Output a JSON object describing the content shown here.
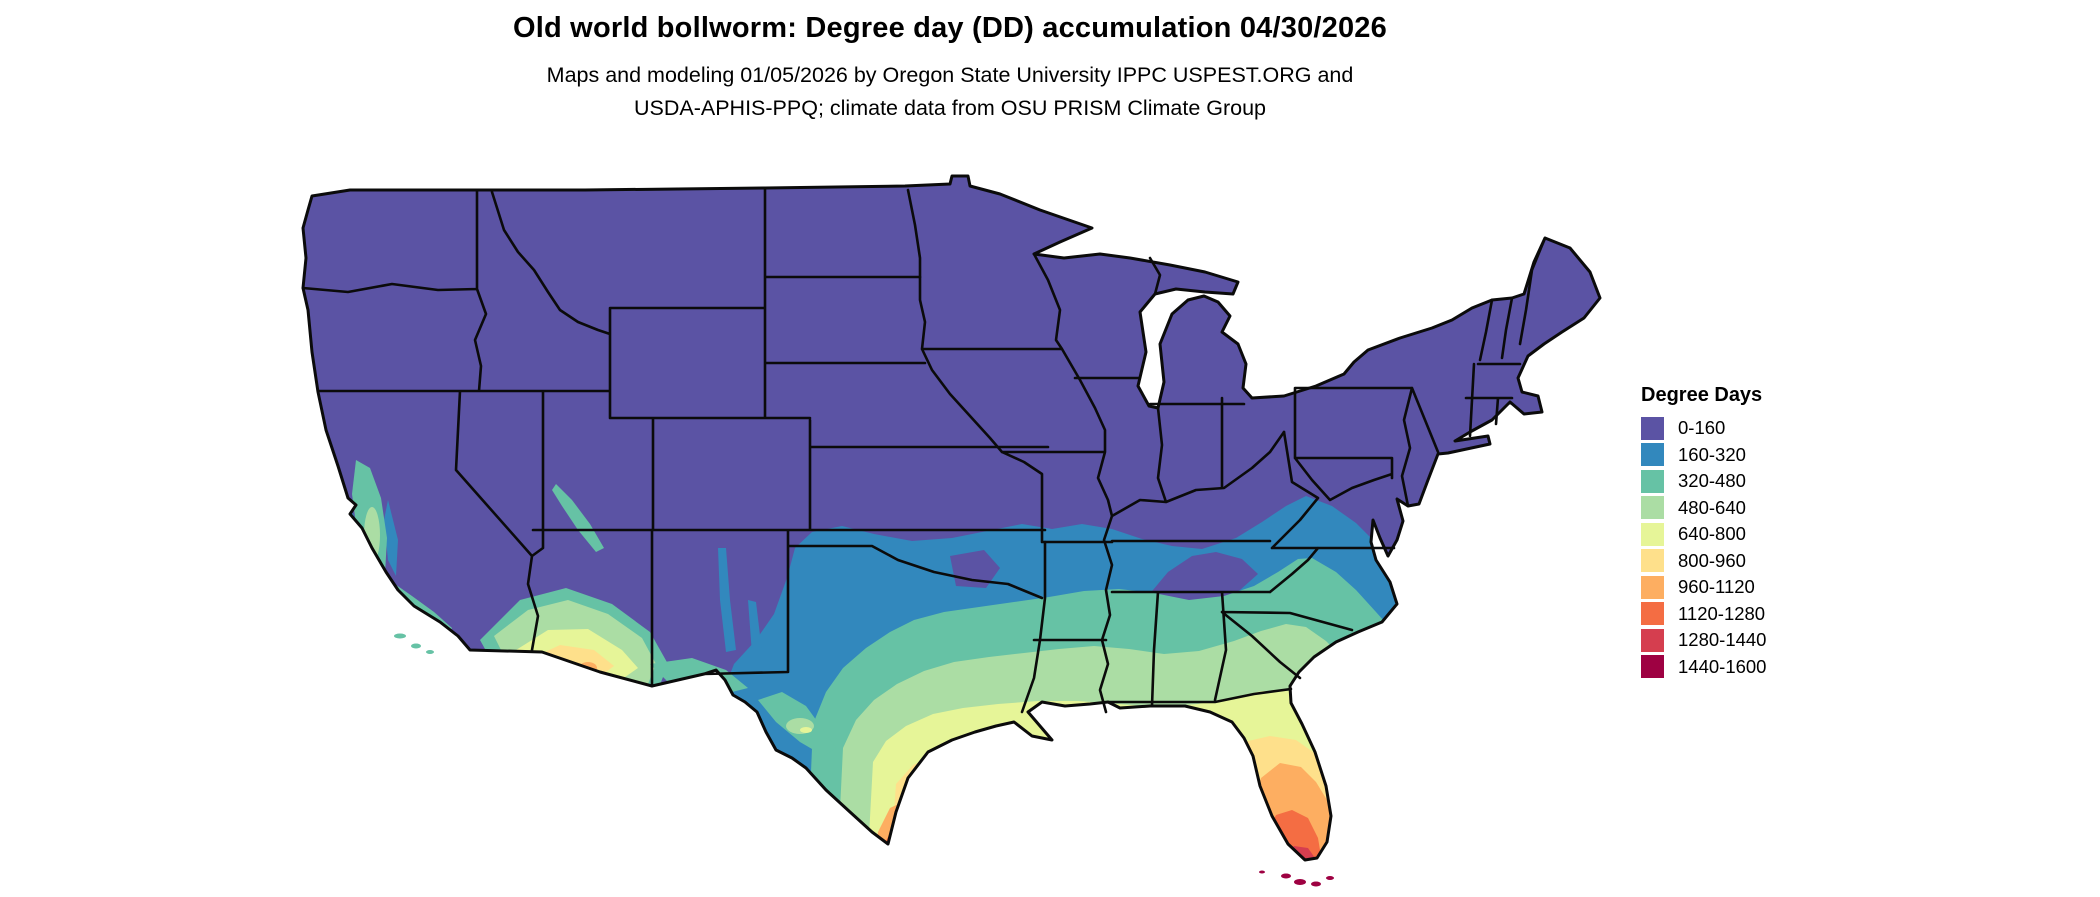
{
  "header": {
    "title": "Old world bollworm: Degree day (DD) accumulation 04/30/2026",
    "subtitle_line1": "Maps and modeling 01/05/2026 by Oregon State University IPPC USPEST.ORG and",
    "subtitle_line2": "USDA-APHIS-PPQ; climate data from OSU PRISM Climate Group"
  },
  "legend": {
    "title": "Degree Days",
    "entries": [
      {
        "label": "0-160",
        "color": "#5B53A4"
      },
      {
        "label": "160-320",
        "color": "#3288BD"
      },
      {
        "label": "320-480",
        "color": "#66C2A5"
      },
      {
        "label": "480-640",
        "color": "#ABDDA4"
      },
      {
        "label": "640-800",
        "color": "#E6F598"
      },
      {
        "label": "800-960",
        "color": "#FEE08B"
      },
      {
        "label": "960-1120",
        "color": "#FDAE61"
      },
      {
        "label": "1120-1280",
        "color": "#F46D43"
      },
      {
        "label": "1280-1440",
        "color": "#D53E4F"
      },
      {
        "label": "1440-1600",
        "color": "#9E0142"
      }
    ]
  },
  "map": {
    "kind": "choropleth raster map of the contiguous United States with state borders",
    "variable": "accumulated degree days (DD)",
    "pattern": "0-160 DD (purple) across the northern and mountain states; bands of 160-320 through 640-800 DD across the southern plains, Gulf states and the Atlantic coastal plain; 800-1600 DD in far south Texas, central/south Florida and the Florida Keys; warm pockets in California's Central Valley and the desert Southwest",
    "colors": {
      "background": "#ffffff",
      "state_border": "#0b0b0b",
      "text": "#000000"
    }
  }
}
